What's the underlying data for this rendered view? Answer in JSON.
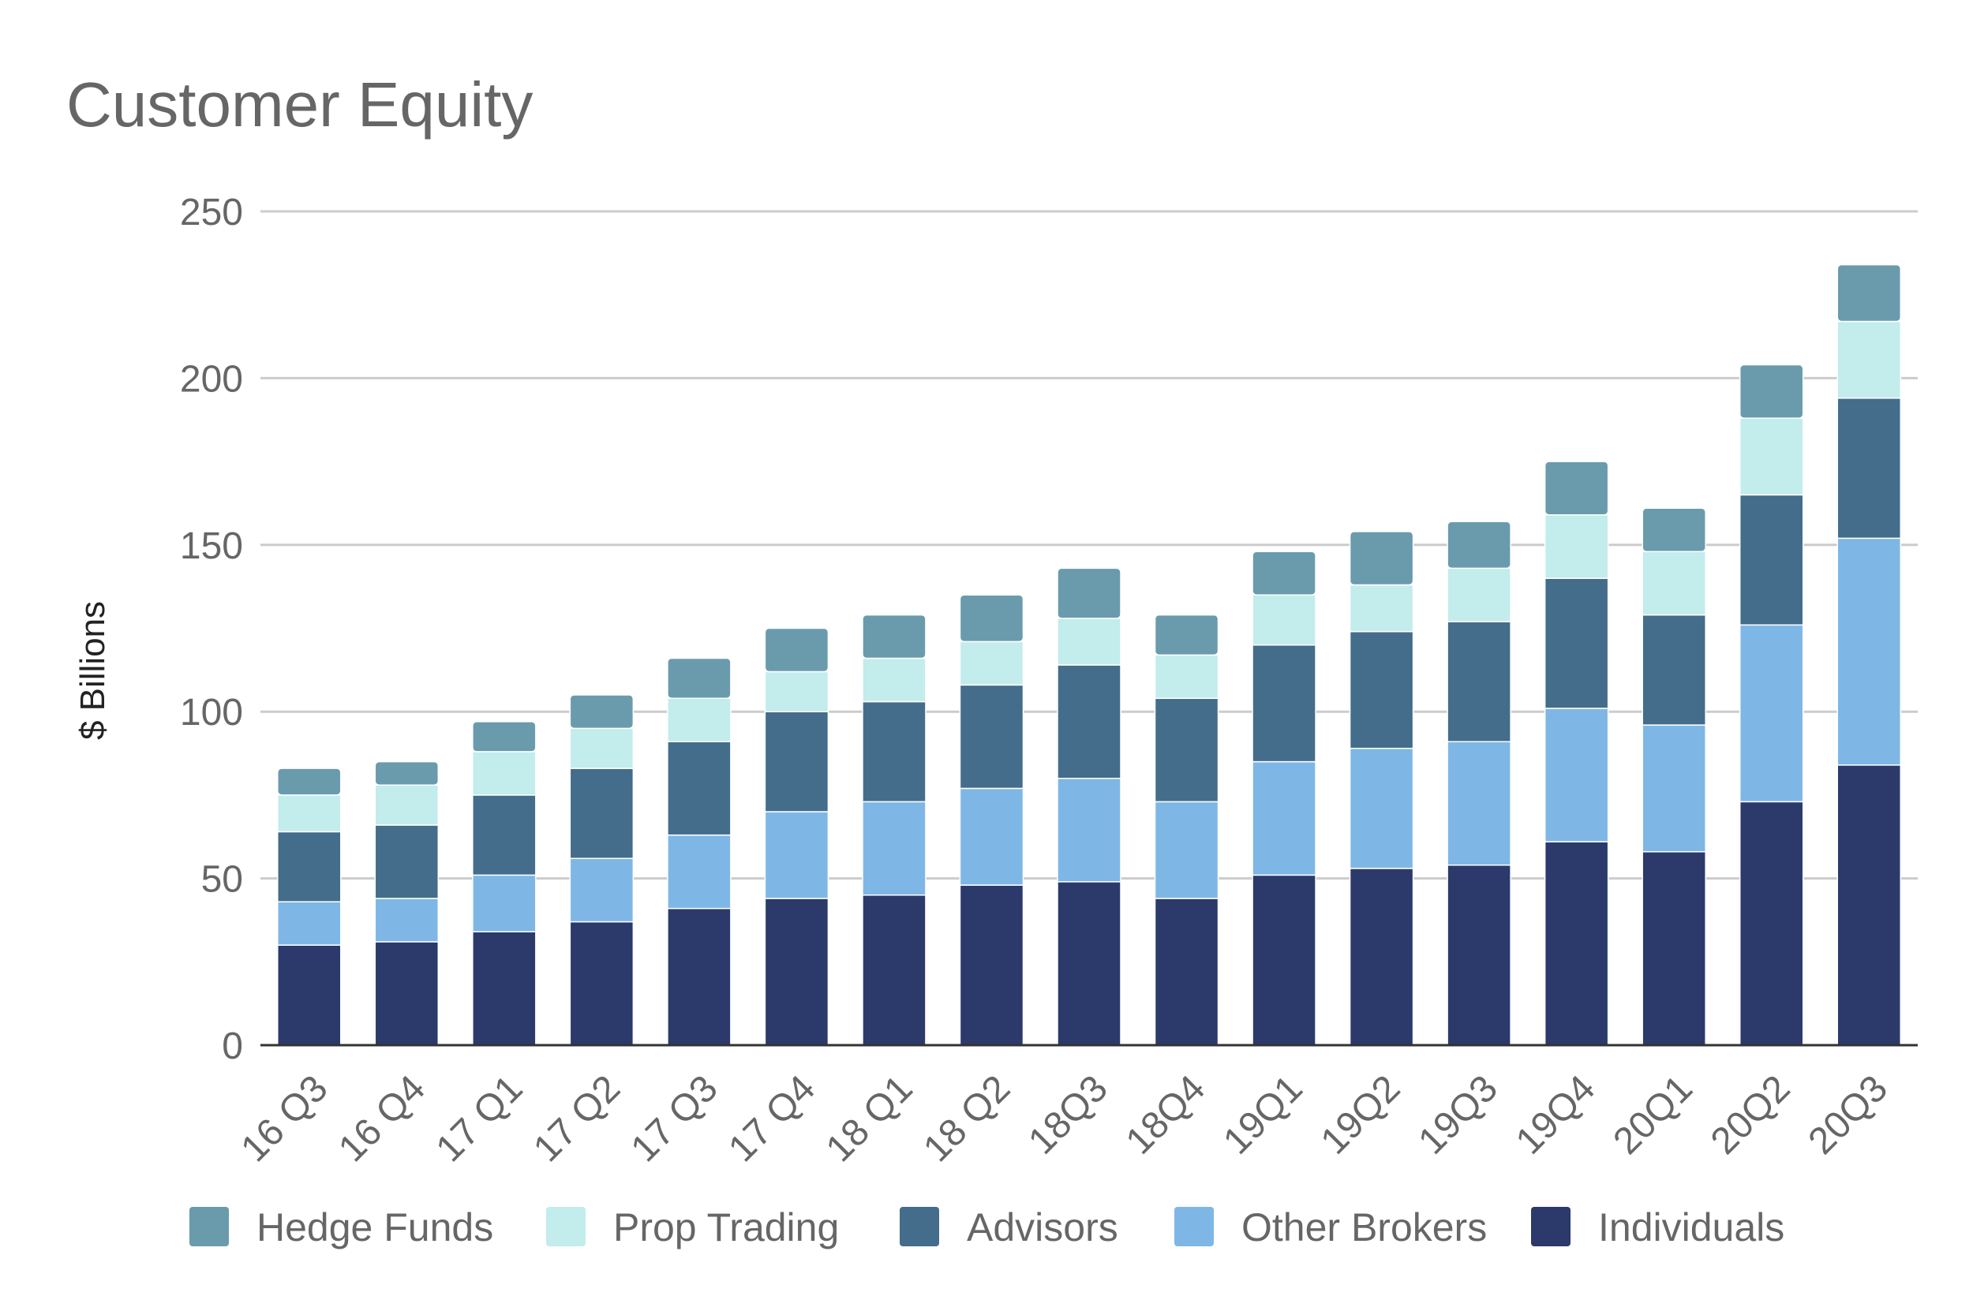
{
  "chart_data": {
    "type": "bar",
    "stacked": true,
    "title": "Customer Equity",
    "xlabel": "",
    "ylabel": "$ Billions",
    "ylim": [
      0,
      250
    ],
    "yticks": [
      0,
      50,
      100,
      150,
      200,
      250
    ],
    "ytick_labels": [
      "0",
      "50",
      "100",
      "150",
      "200",
      "250"
    ],
    "grid": true,
    "legend_position": "bottom",
    "categories": [
      "16 Q3",
      "16 Q4",
      "17 Q1",
      "17 Q2",
      "17 Q3",
      "17 Q4",
      "18 Q1",
      "18 Q2",
      "18Q3",
      "18Q4",
      "19Q1",
      "19Q2",
      "19Q3",
      "19Q4",
      "20Q1",
      "20Q2",
      "20Q3"
    ],
    "series": [
      {
        "name": "Individuals",
        "color": "#2b3a6b",
        "values": [
          30,
          31,
          34,
          37,
          41,
          44,
          45,
          48,
          49,
          44,
          51,
          53,
          54,
          61,
          58,
          73,
          84
        ]
      },
      {
        "name": "Other Brokers",
        "color": "#7eb7e6",
        "values": [
          13,
          13,
          17,
          19,
          22,
          26,
          28,
          29,
          31,
          29,
          34,
          36,
          37,
          40,
          38,
          53,
          68
        ]
      },
      {
        "name": "Advisors",
        "color": "#436d8a",
        "values": [
          21,
          22,
          24,
          27,
          28,
          30,
          30,
          31,
          34,
          31,
          35,
          35,
          36,
          39,
          33,
          39,
          42
        ]
      },
      {
        "name": "Prop Trading",
        "color": "#c3ecec",
        "values": [
          11,
          12,
          13,
          12,
          13,
          12,
          13,
          13,
          14,
          13,
          15,
          14,
          16,
          19,
          19,
          23,
          23
        ]
      },
      {
        "name": "Hedge Funds",
        "color": "#6a9bad",
        "values": [
          8,
          7,
          9,
          10,
          12,
          13,
          13,
          14,
          15,
          12,
          13,
          16,
          14,
          16,
          13,
          16,
          17
        ]
      }
    ],
    "legend_order": [
      "Hedge Funds",
      "Prop Trading",
      "Advisors",
      "Other Brokers",
      "Individuals"
    ]
  }
}
